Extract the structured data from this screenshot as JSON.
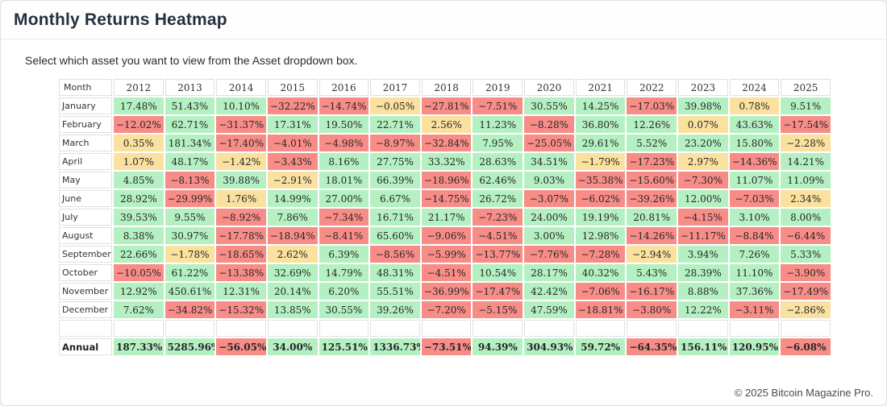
{
  "page": {
    "title": "Monthly Returns Heatmap",
    "subtitle": "Select which asset you want to view from the Asset dropdown box.",
    "footer": "© 2025 Bitcoin Magazine Pro."
  },
  "chart_data": {
    "type": "heatmap",
    "title": "Monthly Returns Heatmap",
    "corner_label": "Month",
    "unit": "%",
    "columns": [
      "2012",
      "2013",
      "2014",
      "2015",
      "2016",
      "2017",
      "2018",
      "2019",
      "2020",
      "2021",
      "2022",
      "2023",
      "2024",
      "2025"
    ],
    "rows": [
      "January",
      "February",
      "March",
      "April",
      "May",
      "June",
      "July",
      "August",
      "September",
      "October",
      "November",
      "December"
    ],
    "values": [
      [
        17.48,
        51.43,
        10.1,
        -32.22,
        -14.74,
        -0.05,
        -27.81,
        -7.51,
        30.55,
        14.25,
        -17.03,
        39.98,
        0.78,
        9.51
      ],
      [
        -12.02,
        62.71,
        -31.37,
        17.31,
        19.5,
        22.71,
        2.56,
        11.23,
        -8.28,
        36.8,
        12.26,
        0.07,
        43.63,
        -17.54
      ],
      [
        0.35,
        181.34,
        -17.4,
        -4.01,
        -4.98,
        -8.97,
        -32.84,
        7.95,
        -25.05,
        29.61,
        5.52,
        23.2,
        15.8,
        -2.28
      ],
      [
        1.07,
        48.17,
        -1.42,
        -3.43,
        8.16,
        27.75,
        33.32,
        28.63,
        34.51,
        -1.79,
        -17.23,
        2.97,
        -14.36,
        14.21
      ],
      [
        4.85,
        -8.13,
        39.88,
        -2.91,
        18.01,
        66.39,
        -18.96,
        62.46,
        9.03,
        -35.38,
        -15.6,
        -7.3,
        11.07,
        11.09
      ],
      [
        28.92,
        -29.99,
        1.76,
        14.99,
        27.0,
        6.67,
        -14.75,
        26.72,
        -3.07,
        -6.02,
        -39.26,
        12.0,
        -7.03,
        2.34
      ],
      [
        39.53,
        9.55,
        -8.92,
        7.86,
        -7.34,
        16.71,
        21.17,
        -7.23,
        24.0,
        19.19,
        20.81,
        -4.15,
        3.1,
        8.0
      ],
      [
        8.38,
        30.97,
        -17.78,
        -18.94,
        -8.41,
        65.6,
        -9.06,
        -4.51,
        3.0,
        12.98,
        -14.26,
        -11.17,
        -8.84,
        -6.44
      ],
      [
        22.66,
        -1.78,
        -18.65,
        2.62,
        6.39,
        -8.56,
        -5.99,
        -13.77,
        -7.76,
        -7.28,
        -2.94,
        3.94,
        7.26,
        5.33
      ],
      [
        -10.05,
        61.22,
        -13.38,
        32.69,
        14.79,
        48.31,
        -4.51,
        10.54,
        28.17,
        40.32,
        5.43,
        28.39,
        11.1,
        -3.9
      ],
      [
        12.92,
        450.61,
        12.31,
        20.14,
        6.2,
        55.51,
        -36.99,
        -17.47,
        42.42,
        -7.06,
        -16.17,
        8.88,
        37.36,
        -17.49
      ],
      [
        7.62,
        -34.82,
        -15.32,
        13.85,
        30.55,
        39.26,
        -7.2,
        -5.15,
        47.59,
        -18.81,
        -3.8,
        12.22,
        -3.11,
        -2.86
      ]
    ],
    "annual_label": "Annual",
    "annual_values": [
      187.33,
      5285.96,
      -56.05,
      34.0,
      125.51,
      1336.73,
      -73.51,
      94.39,
      304.93,
      59.72,
      -64.35,
      156.11,
      120.95,
      -6.08
    ],
    "colors": {
      "positive": "#b5f0c3",
      "negative": "#f88d88",
      "neutral": "#fbe1a0"
    },
    "thresholds": {
      "green_min": 3,
      "red_max": -3
    },
    "legend_position": "none",
    "grid": "cell-borders"
  }
}
